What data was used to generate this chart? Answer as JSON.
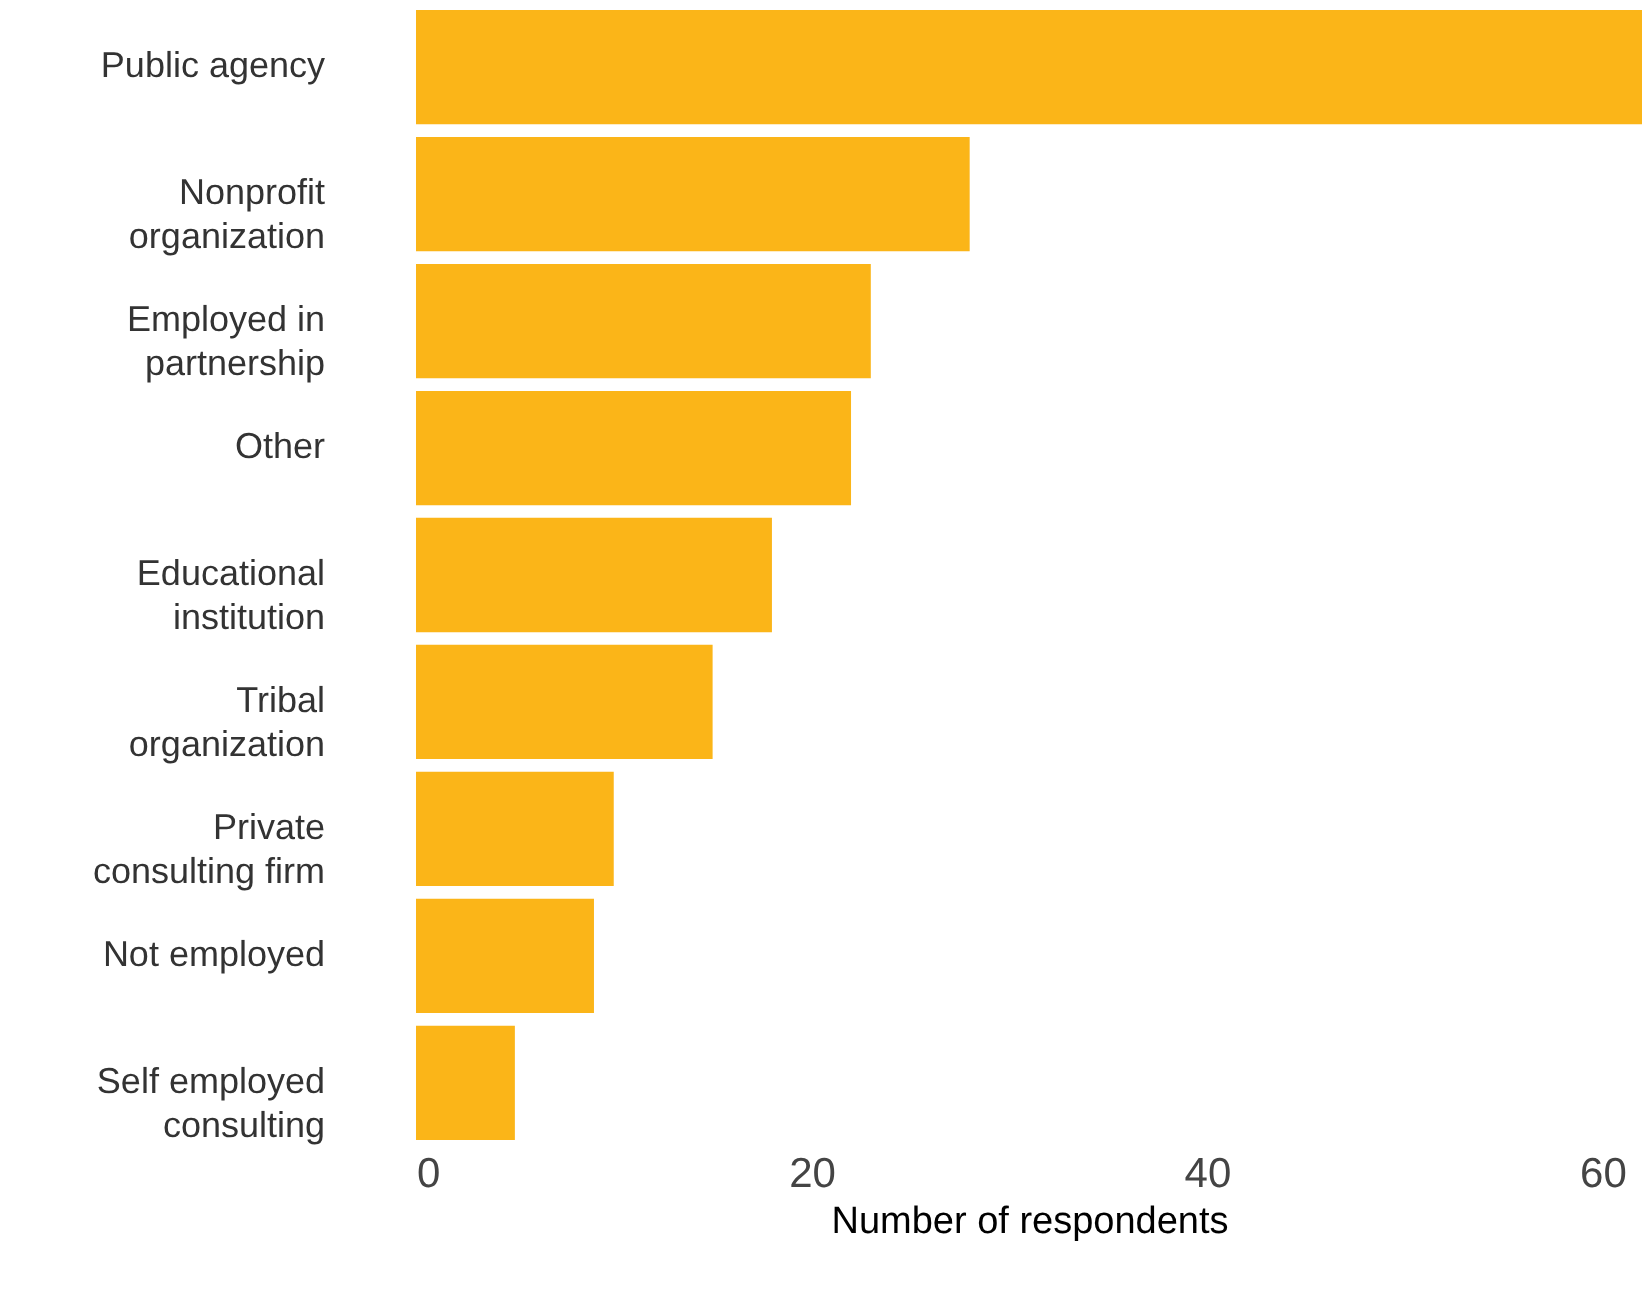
{
  "chart_data": {
    "type": "bar",
    "orientation": "horizontal",
    "xlabel": "Number of respondents",
    "categories": [
      "Public agency",
      "Nonprofit\norganization",
      "Employed in\npartnership",
      "Other",
      "Educational\ninstitution",
      "Tribal\norganization",
      "Private\nconsulting firm",
      "Not employed",
      "Self employed\nconsulting"
    ],
    "values": [
      62,
      28,
      23,
      22,
      18,
      15,
      10,
      9,
      5
    ],
    "color": "#fbb518",
    "xlim": [
      0,
      62
    ],
    "xticks": [
      0,
      20,
      40,
      60
    ],
    "grid": false
  }
}
